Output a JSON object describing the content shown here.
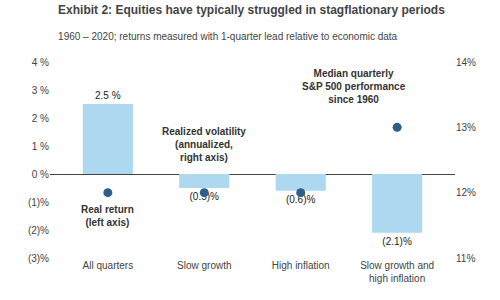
{
  "chart_data": {
    "type": "bar",
    "title": "Exhibit 2: Equities have typically struggled in stagflationary periods",
    "subtitle": "1960 – 2020; returns measured with 1-quarter lead relative to economic data",
    "categories": [
      "All quarters",
      "Slow growth",
      "High inflation",
      "Slow growth and\nhigh inflation"
    ],
    "series": [
      {
        "type": "bar",
        "color": "#add8f0",
        "values": [
          2.5,
          -0.5,
          -0.6,
          -2.1
        ],
        "value_labels": [
          "2.5 %",
          "(0.5)%",
          "(0.6)%",
          "(2.1)%"
        ],
        "data_labels": true
      },
      {
        "type": "scatter",
        "axis": "y2",
        "marker": "circle",
        "color": "#2e5f8a",
        "values": [
          12.0,
          12.0,
          12.0,
          13.0
        ]
      }
    ],
    "ylim": [
      -3,
      4
    ],
    "yticks": [
      {
        "value": -3,
        "label": "(3)%"
      },
      {
        "value": -2,
        "label": "(2)%"
      },
      {
        "value": -1,
        "label": "(1)%"
      },
      {
        "value": 0,
        "label": "0 %"
      },
      {
        "value": 1,
        "label": "1 %"
      },
      {
        "value": 2,
        "label": "2 %"
      },
      {
        "value": 3,
        "label": "3 %"
      },
      {
        "value": 4,
        "label": "4 %"
      }
    ],
    "y2lim": [
      11,
      14
    ],
    "y2ticks": [
      {
        "value": 11,
        "label": "11%"
      },
      {
        "value": 12,
        "label": "12%"
      },
      {
        "value": 13,
        "label": "13%"
      },
      {
        "value": 14,
        "label": "14%"
      }
    ],
    "annotations": [
      "Real return\n(left axis)",
      "Realized volatility\n(annualized,\nright axis)",
      "Median quarterly\nS&P 500 performance\nsince 1960"
    ],
    "grid": false
  }
}
